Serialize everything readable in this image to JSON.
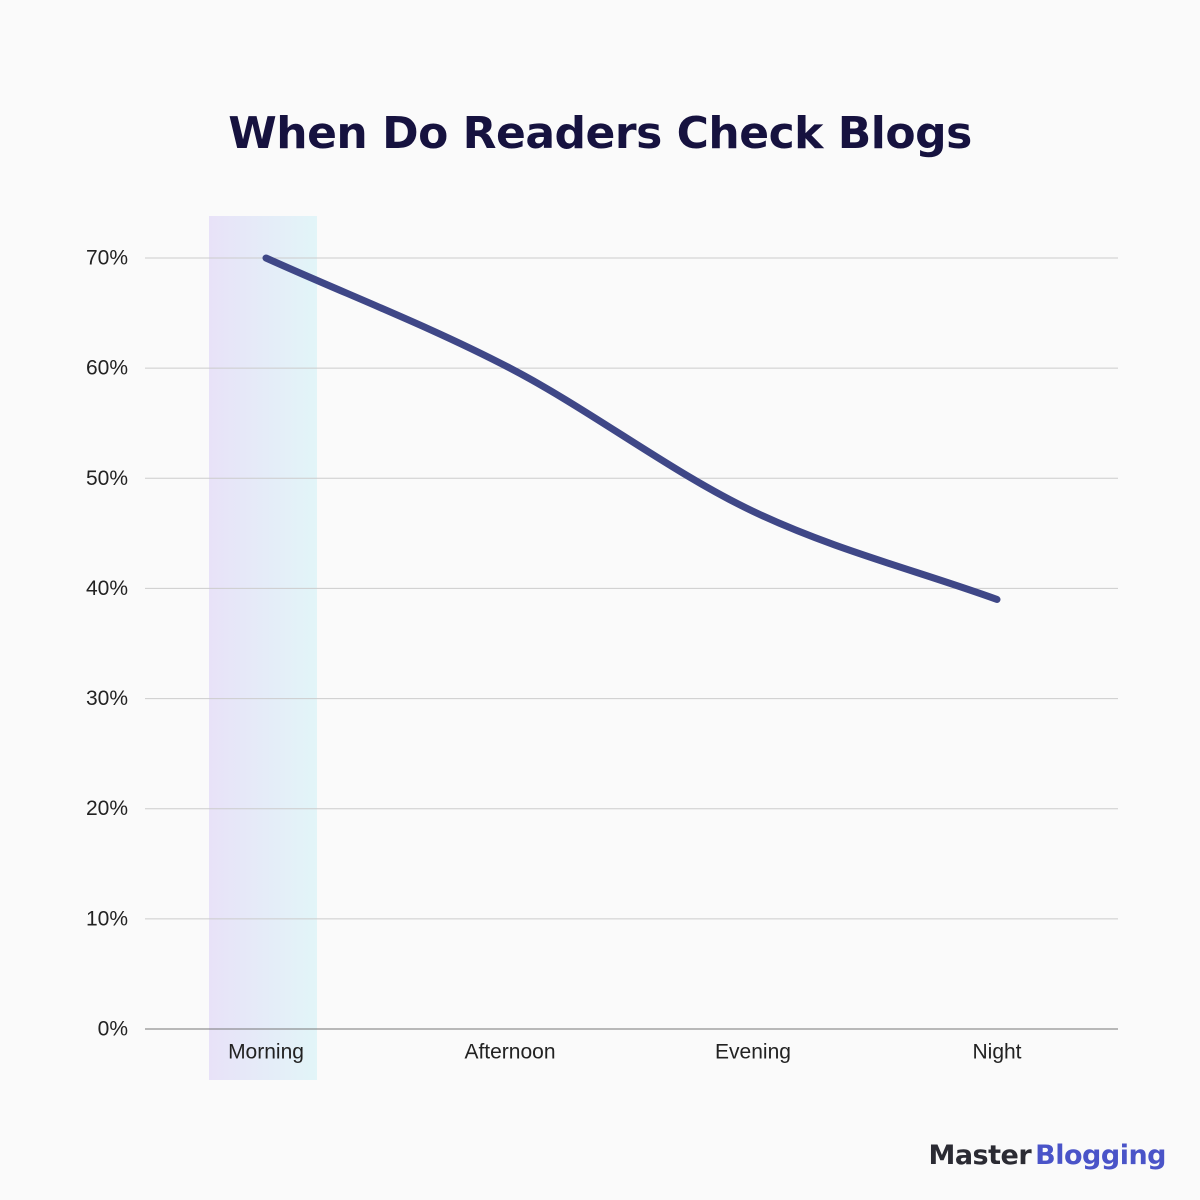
{
  "chart_data": {
    "type": "line",
    "title": "When Do Readers Check Blogs",
    "xlabel": "",
    "ylabel": "",
    "categories": [
      "Morning",
      "Afternoon",
      "Evening",
      "Night"
    ],
    "series": [
      {
        "values": [
          70,
          60,
          47,
          39
        ]
      }
    ],
    "ylim": [
      0,
      70
    ],
    "yticks": [
      "0%",
      "10%",
      "20%",
      "30%",
      "40%",
      "50%",
      "60%",
      "70%"
    ],
    "ytick_values": [
      0,
      10,
      20,
      30,
      40,
      50,
      60,
      70
    ],
    "grid": true,
    "highlight_category": "Morning",
    "colors": {
      "line": "#3f4787",
      "grid": "#cccccc",
      "axis": "#777777",
      "highlight_start": "#e8e2f8",
      "highlight_end": "#e2f5f8"
    }
  },
  "brand": {
    "part1": "Master",
    "part2": "Blogging"
  }
}
